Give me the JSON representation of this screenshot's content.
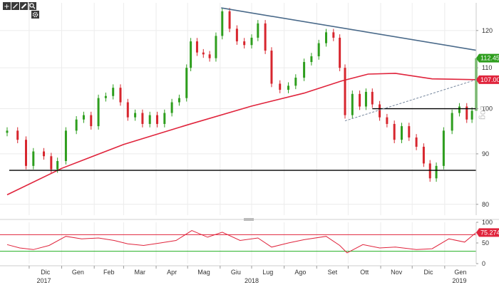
{
  "toolbar": {
    "icons": [
      "plus-icon",
      "pencil-icon",
      "brush-icon",
      "magnifier-icon",
      "gear-icon"
    ]
  },
  "chart_data": [
    {
      "type": "candlestick",
      "scale": "log",
      "scale_label": "Log",
      "ylim": [
        78,
        128
      ],
      "yticks": [
        80,
        90,
        100,
        110,
        120
      ],
      "grid": true,
      "badges": {
        "last_price": "112.45",
        "moving_average": "107.0072"
      },
      "colors": {
        "up": "#2e9e1e",
        "down": "#d7262e",
        "moving_average": "#e0243c",
        "trend": "#4a6a8a",
        "support": "#000000"
      },
      "moving_average": [
        {
          "date": "2017-11-10",
          "value": 81.8
        },
        {
          "date": "2018-01-01",
          "value": 87.0
        },
        {
          "date": "2018-03-01",
          "value": 92.0
        },
        {
          "date": "2018-05-01",
          "value": 96.3
        },
        {
          "date": "2018-07-01",
          "value": 100.6
        },
        {
          "date": "2018-08-20",
          "value": 103.7
        },
        {
          "date": "2018-09-25",
          "value": 106.7
        },
        {
          "date": "2018-10-20",
          "value": 108.4
        },
        {
          "date": "2018-11-15",
          "value": 108.6
        },
        {
          "date": "2018-12-20",
          "value": 107.2
        },
        {
          "date": "2019-01-31",
          "value": 107.0
        }
      ],
      "lines": [
        {
          "name": "support",
          "from": {
            "date": "2017-11-12",
            "value": 86.6
          },
          "to": {
            "date": "2019-01-31",
            "value": 86.6
          }
        },
        {
          "name": "resistance",
          "from": {
            "date": "2018-10-24",
            "value": 100.0
          },
          "to": {
            "date": "2019-01-31",
            "value": 100.0
          }
        },
        {
          "name": "trend",
          "from": {
            "date": "2018-06-02",
            "value": 126.5
          },
          "to": {
            "date": "2019-01-31",
            "value": 114.6
          }
        },
        {
          "name": "channel",
          "from": {
            "date": "2018-09-28",
            "value": 97.2
          },
          "to": {
            "date": "2019-01-31",
            "value": 107.0
          }
        }
      ],
      "price": [
        {
          "date": "2017-11-10",
          "close": 95.0
        },
        {
          "date": "2017-11-20",
          "close": 93.0
        },
        {
          "date": "2017-11-28",
          "close": 87.5
        },
        {
          "date": "2017-12-05",
          "close": 90.5
        },
        {
          "date": "2017-12-15",
          "close": 89.5
        },
        {
          "date": "2017-12-22",
          "close": 86.8
        },
        {
          "date": "2017-12-28",
          "close": 88.5
        },
        {
          "date": "2018-01-05",
          "close": 95.0
        },
        {
          "date": "2018-01-15",
          "close": 97.5
        },
        {
          "date": "2018-01-22",
          "close": 98.5
        },
        {
          "date": "2018-01-29",
          "close": 96.0
        },
        {
          "date": "2018-02-05",
          "close": 102.5
        },
        {
          "date": "2018-02-12",
          "close": 103.0
        },
        {
          "date": "2018-02-19",
          "close": 105.0
        },
        {
          "date": "2018-02-26",
          "close": 101.5
        },
        {
          "date": "2018-03-05",
          "close": 98.0
        },
        {
          "date": "2018-03-12",
          "close": 99.0
        },
        {
          "date": "2018-03-19",
          "close": 96.5
        },
        {
          "date": "2018-03-26",
          "close": 98.5
        },
        {
          "date": "2018-04-02",
          "close": 96.5
        },
        {
          "date": "2018-04-09",
          "close": 99.0
        },
        {
          "date": "2018-04-16",
          "close": 101.5
        },
        {
          "date": "2018-04-23",
          "close": 102.5
        },
        {
          "date": "2018-04-30",
          "close": 110.0
        },
        {
          "date": "2018-05-04",
          "close": 117.0
        },
        {
          "date": "2018-05-10",
          "close": 114.0
        },
        {
          "date": "2018-05-16",
          "close": 113.5
        },
        {
          "date": "2018-05-22",
          "close": 112.5
        },
        {
          "date": "2018-05-28",
          "close": 118.5
        },
        {
          "date": "2018-06-03",
          "close": 125.5
        },
        {
          "date": "2018-06-10",
          "close": 120.5
        },
        {
          "date": "2018-06-17",
          "close": 117.0
        },
        {
          "date": "2018-06-24",
          "close": 116.0
        },
        {
          "date": "2018-07-01",
          "close": 118.0
        },
        {
          "date": "2018-07-07",
          "close": 122.0
        },
        {
          "date": "2018-07-14",
          "close": 114.5
        },
        {
          "date": "2018-07-20",
          "close": 106.0
        },
        {
          "date": "2018-07-28",
          "close": 104.5
        },
        {
          "date": "2018-08-05",
          "close": 105.5
        },
        {
          "date": "2018-08-12",
          "close": 107.5
        },
        {
          "date": "2018-08-20",
          "close": 111.5
        },
        {
          "date": "2018-08-27",
          "close": 113.0
        },
        {
          "date": "2018-09-03",
          "close": 116.5
        },
        {
          "date": "2018-09-10",
          "close": 119.5
        },
        {
          "date": "2018-09-17",
          "close": 118.0
        },
        {
          "date": "2018-09-23",
          "close": 110.0
        },
        {
          "date": "2018-09-28",
          "close": 98.5
        },
        {
          "date": "2018-10-05",
          "close": 103.5
        },
        {
          "date": "2018-10-12",
          "close": 100.5
        },
        {
          "date": "2018-10-18",
          "close": 104.0
        },
        {
          "date": "2018-10-24",
          "close": 101.0
        },
        {
          "date": "2018-10-31",
          "close": 98.0
        },
        {
          "date": "2018-11-07",
          "close": 96.5
        },
        {
          "date": "2018-11-14",
          "close": 93.0
        },
        {
          "date": "2018-11-21",
          "close": 96.0
        },
        {
          "date": "2018-11-28",
          "close": 93.5
        },
        {
          "date": "2018-12-05",
          "close": 91.5
        },
        {
          "date": "2018-12-12",
          "close": 88.0
        },
        {
          "date": "2018-12-18",
          "close": 85.0
        },
        {
          "date": "2018-12-24",
          "close": 87.5
        },
        {
          "date": "2018-12-31",
          "close": 95.0
        },
        {
          "date": "2019-01-08",
          "close": 99.0
        },
        {
          "date": "2019-01-15",
          "close": 100.5
        },
        {
          "date": "2019-01-22",
          "close": 97.5
        },
        {
          "date": "2019-01-27",
          "close": 99.5
        },
        {
          "date": "2019-01-31",
          "close": 112.5
        }
      ]
    },
    {
      "type": "line",
      "ylim": [
        0,
        100
      ],
      "yticks": [
        0,
        50,
        100
      ],
      "reference_lines": [
        {
          "value": 70,
          "color": "#e0243c"
        },
        {
          "value": 30,
          "color": "#22b022"
        }
      ],
      "badge": "75.2741",
      "x_month_labels": [
        "Dic",
        "Gen",
        "Feb",
        "Mar",
        "Apr",
        "Mag",
        "Giu",
        "Lug",
        "Ago",
        "Set",
        "Ott",
        "Nov",
        "Dic",
        "Gen"
      ],
      "x_year_labels": [
        "2017",
        "2018",
        "2019"
      ],
      "series": [
        {
          "values": [
            {
              "date": "2017-11-10",
              "value": 46
            },
            {
              "date": "2017-11-22",
              "value": 38
            },
            {
              "date": "2017-12-05",
              "value": 34
            },
            {
              "date": "2017-12-20",
              "value": 44
            },
            {
              "date": "2018-01-05",
              "value": 66
            },
            {
              "date": "2018-01-20",
              "value": 60
            },
            {
              "date": "2018-02-05",
              "value": 62
            },
            {
              "date": "2018-02-20",
              "value": 56
            },
            {
              "date": "2018-03-05",
              "value": 48
            },
            {
              "date": "2018-03-20",
              "value": 44
            },
            {
              "date": "2018-04-05",
              "value": 50
            },
            {
              "date": "2018-04-20",
              "value": 56
            },
            {
              "date": "2018-05-05",
              "value": 80
            },
            {
              "date": "2018-05-20",
              "value": 64
            },
            {
              "date": "2018-06-03",
              "value": 76
            },
            {
              "date": "2018-06-20",
              "value": 56
            },
            {
              "date": "2018-07-07",
              "value": 62
            },
            {
              "date": "2018-07-20",
              "value": 40
            },
            {
              "date": "2018-08-05",
              "value": 50
            },
            {
              "date": "2018-08-20",
              "value": 58
            },
            {
              "date": "2018-09-10",
              "value": 66
            },
            {
              "date": "2018-09-23",
              "value": 44
            },
            {
              "date": "2018-09-30",
              "value": 26
            },
            {
              "date": "2018-10-15",
              "value": 46
            },
            {
              "date": "2018-10-31",
              "value": 38
            },
            {
              "date": "2018-11-15",
              "value": 40
            },
            {
              "date": "2018-12-05",
              "value": 34
            },
            {
              "date": "2018-12-20",
              "value": 36
            },
            {
              "date": "2019-01-05",
              "value": 60
            },
            {
              "date": "2019-01-20",
              "value": 52
            },
            {
              "date": "2019-01-31",
              "value": 75.27
            }
          ]
        }
      ]
    }
  ]
}
